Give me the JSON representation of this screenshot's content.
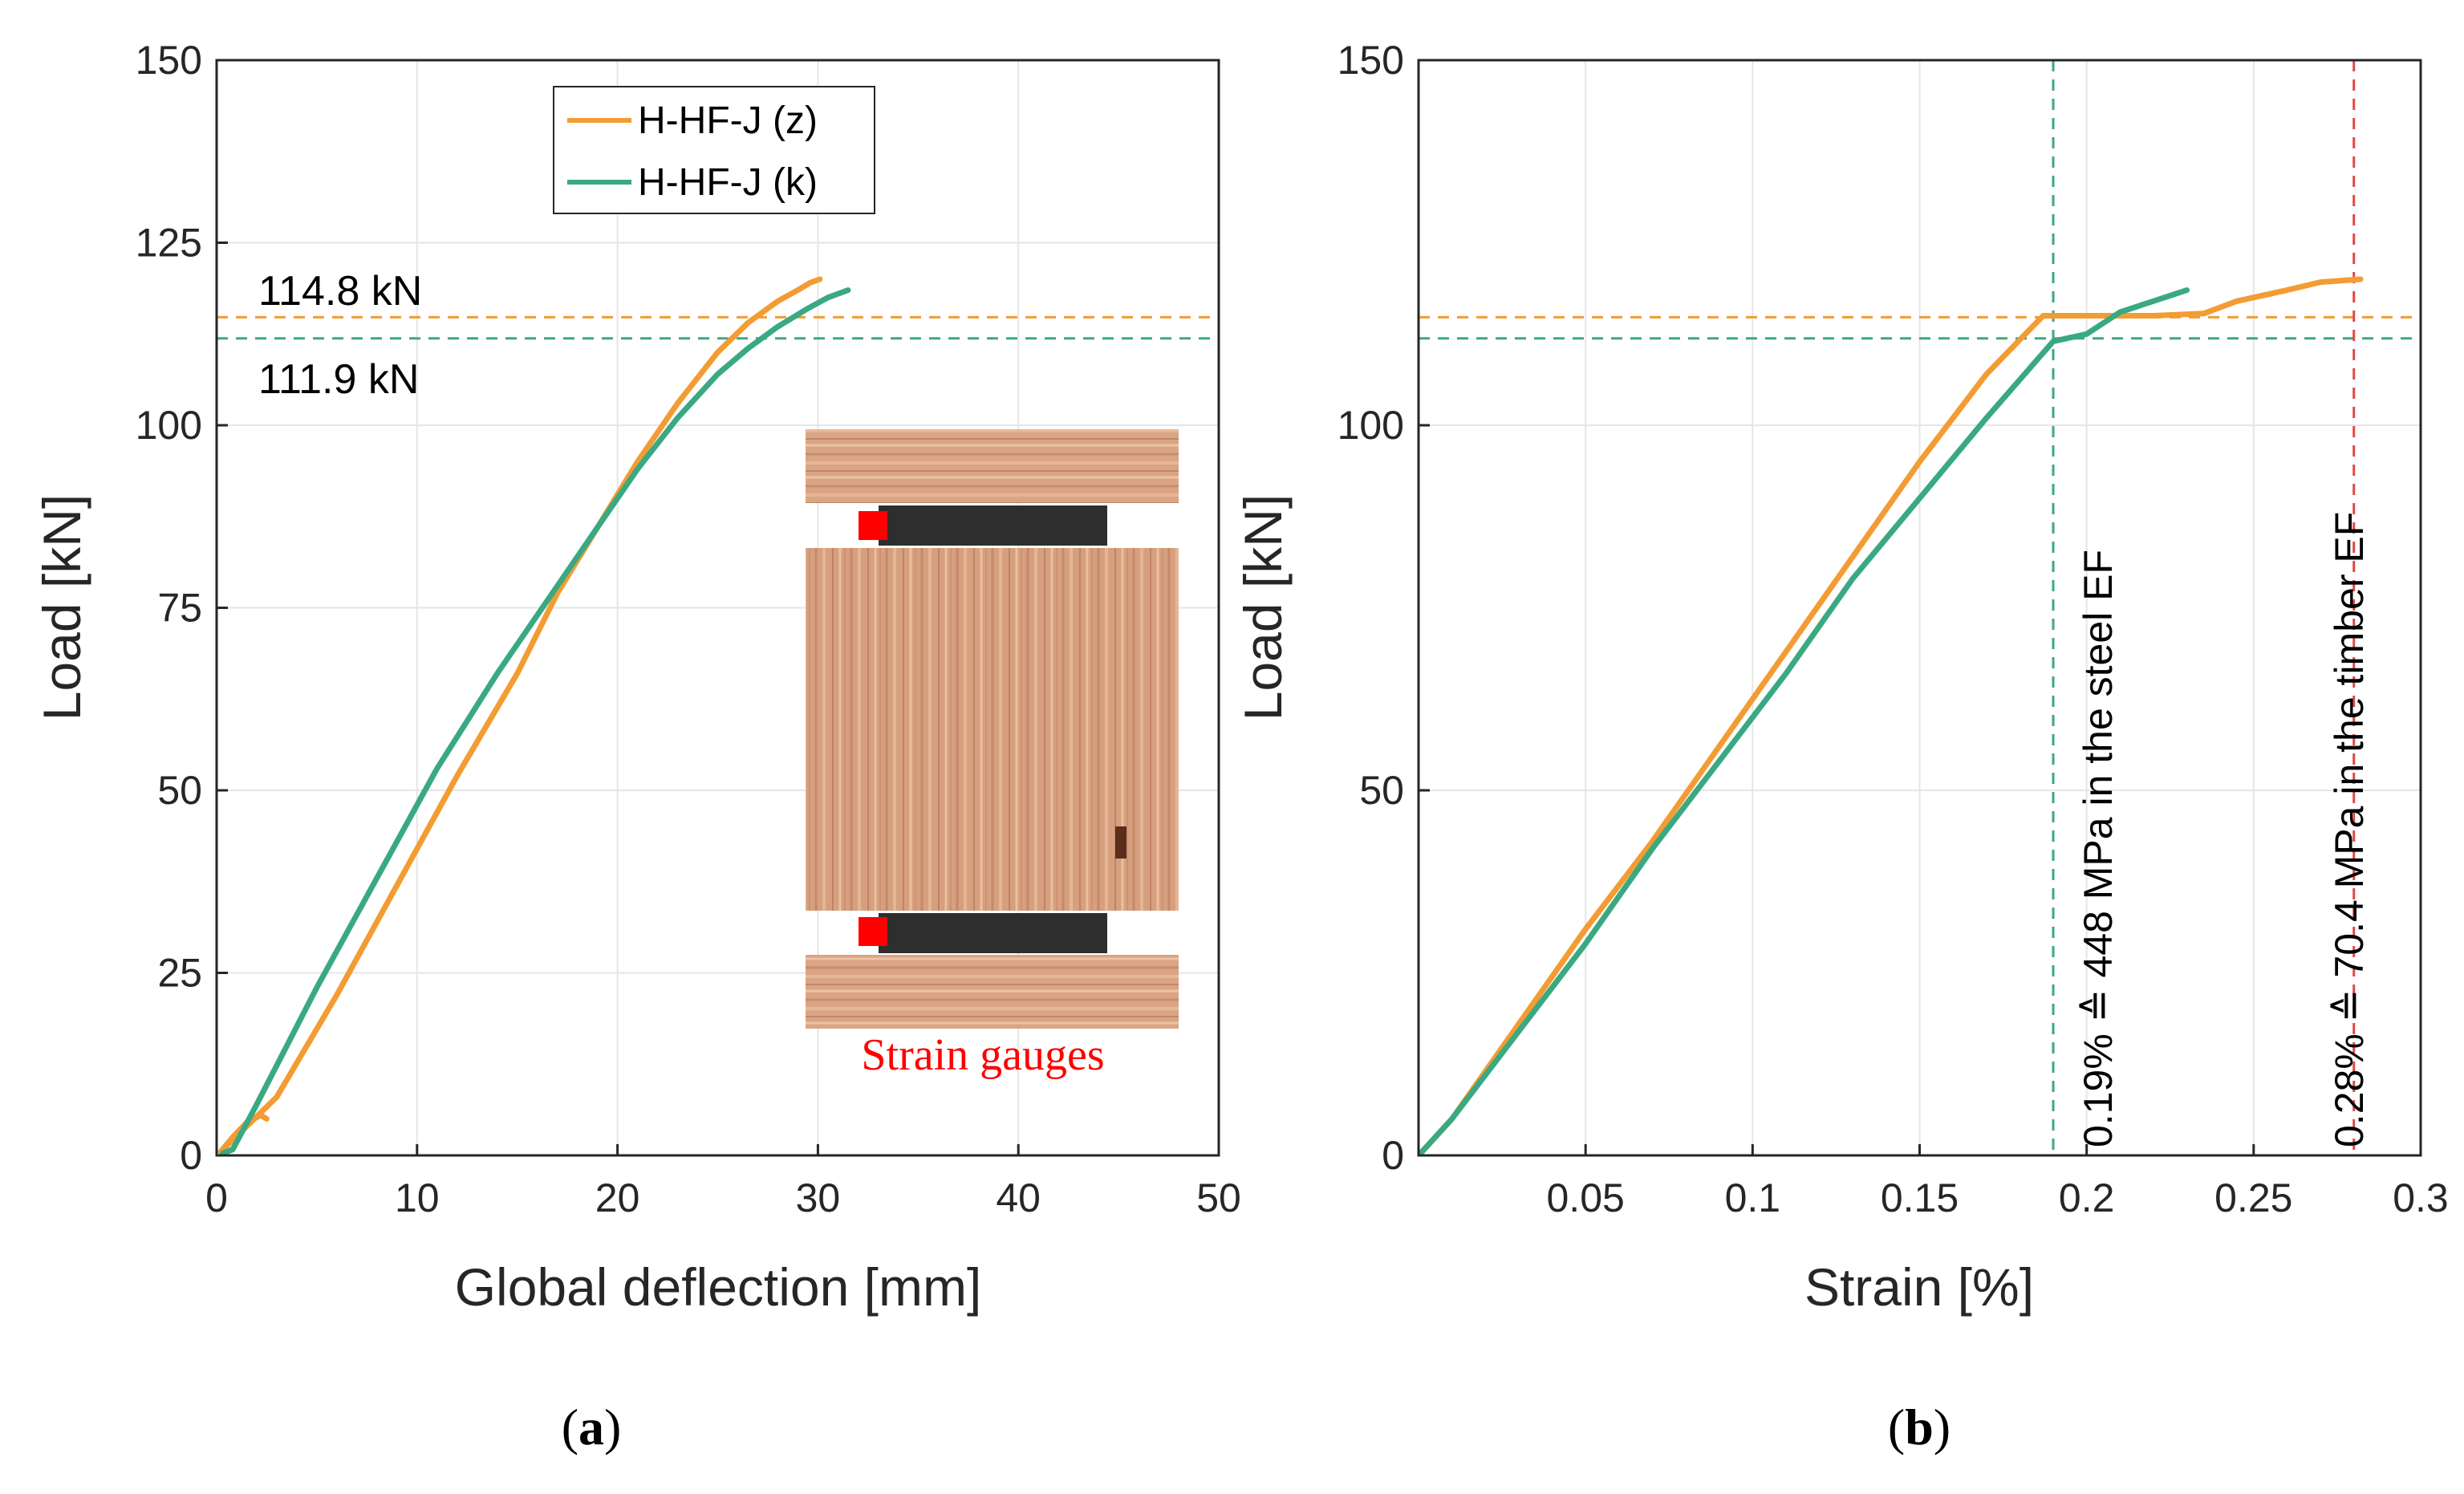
{
  "colors": {
    "orange": "#f39c33",
    "green": "#3aa982",
    "red_ref": "#e04848",
    "gauge_red": "#ff0000",
    "grid": "#e6e6e6"
  },
  "chart_data": [
    {
      "type": "line",
      "panel_label": "a",
      "xlabel": "Global deflection [mm]",
      "ylabel": "Load [kN]",
      "xlim": [
        0,
        50
      ],
      "ylim": [
        0,
        150
      ],
      "xticks": [
        0,
        10,
        20,
        30,
        40,
        50
      ],
      "yticks": [
        0,
        25,
        50,
        75,
        100,
        125,
        150
      ],
      "grid": true,
      "legend": {
        "position": "top-center",
        "entries": [
          "H-HF-J (z)",
          "H-HF-J (k)"
        ]
      },
      "series": [
        {
          "name": "H-HF-J (z)",
          "color": "orange",
          "x": [
            2.5,
            2.2,
            1.5,
            0.8,
            0.2,
            3,
            6,
            9,
            12,
            15,
            17,
            19,
            21,
            23,
            25,
            26.5,
            28,
            29,
            29.6,
            30.1
          ],
          "y": [
            5,
            5.5,
            4.5,
            2.5,
            0.5,
            8,
            22,
            37,
            52,
            66,
            77,
            86,
            95,
            103,
            110,
            114,
            117,
            118.5,
            119.5,
            120
          ]
        },
        {
          "name": "H-HF-J (k)",
          "color": "green",
          "x": [
            0.3,
            0.8,
            2,
            5,
            8,
            11,
            14,
            17,
            19,
            21,
            23,
            25,
            26.5,
            28,
            29.5,
            30.5,
            31.5
          ],
          "y": [
            0.3,
            0.8,
            7,
            23,
            38,
            53,
            66,
            78,
            86,
            94,
            101,
            107,
            110.5,
            113.5,
            116,
            117.5,
            118.5
          ]
        }
      ],
      "reference_lines": [
        {
          "axis": "y",
          "value": 114.8,
          "color": "orange",
          "label": "114.8 kN"
        },
        {
          "axis": "y",
          "value": 111.9,
          "color": "green",
          "label": "111.9 kN"
        }
      ],
      "inset": {
        "description": "timber joint with strain gauges",
        "label": "Strain gauges"
      }
    },
    {
      "type": "line",
      "panel_label": "b",
      "xlabel": "Strain [%]",
      "ylabel": "Load [kN]",
      "xlim": [
        0,
        0.3
      ],
      "ylim": [
        0,
        150
      ],
      "xticks": [
        0.05,
        0.1,
        0.15,
        0.2,
        0.25,
        0.3
      ],
      "xtick_labels": [
        "0.05",
        "0.1",
        "0.15",
        "0.2",
        "0.25",
        "0.3"
      ],
      "yticks": [
        0,
        50,
        100,
        150
      ],
      "grid": true,
      "series": [
        {
          "name": "H-HF-J (z)",
          "color": "orange",
          "x": [
            0.001,
            0.01,
            0.03,
            0.05,
            0.07,
            0.09,
            0.11,
            0.13,
            0.15,
            0.17,
            0.187,
            0.2,
            0.22,
            0.235,
            0.245,
            0.26,
            0.27,
            0.282
          ],
          "y": [
            0.5,
            5,
            18,
            31,
            43,
            56,
            69,
            82,
            95,
            107,
            115,
            115,
            115,
            115.3,
            117,
            118.5,
            119.6,
            120
          ]
        },
        {
          "name": "H-HF-J (k)",
          "color": "green",
          "x": [
            0.001,
            0.01,
            0.03,
            0.05,
            0.07,
            0.09,
            0.11,
            0.13,
            0.15,
            0.17,
            0.19,
            0.2,
            0.21,
            0.22,
            0.23
          ],
          "y": [
            0.5,
            5,
            17,
            29,
            42,
            54,
            66,
            79,
            90,
            101,
            111.5,
            112.5,
            115.5,
            117,
            118.5
          ]
        }
      ],
      "reference_lines": [
        {
          "axis": "y",
          "value": 114.8,
          "color": "orange"
        },
        {
          "axis": "y",
          "value": 111.9,
          "color": "green"
        },
        {
          "axis": "x",
          "value": 0.19,
          "color": "green",
          "label": "0.19% ≙ 448 MPa in the steel EF"
        },
        {
          "axis": "x",
          "value": 0.28,
          "color": "red_ref",
          "label": "0.28% ≙ 70.4 MPa in the timber EF"
        }
      ]
    }
  ]
}
